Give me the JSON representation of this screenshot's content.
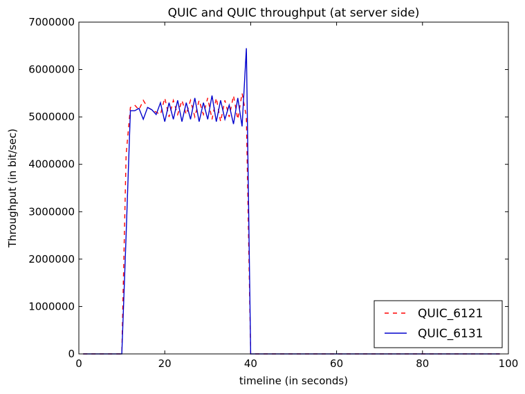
{
  "chart_data": {
    "type": "line",
    "title": "QUIC and QUIC throughput (at server side)",
    "xlabel": "timeline (in seconds)",
    "ylabel": "Throughput (in bit/sec)",
    "xlim": [
      0,
      100
    ],
    "ylim": [
      0,
      7000000
    ],
    "xticks": [
      0,
      20,
      40,
      60,
      80,
      100
    ],
    "yticks": [
      0,
      1000000,
      2000000,
      3000000,
      4000000,
      5000000,
      6000000,
      7000000
    ],
    "grid": false,
    "legend_position": "lower-right",
    "series": [
      {
        "name": "QUIC_6121",
        "color": "#ff0000",
        "style": "dashed",
        "x": [
          1,
          2,
          3,
          4,
          5,
          6,
          7,
          8,
          9,
          10,
          11,
          12,
          13,
          14,
          15,
          16,
          17,
          18,
          19,
          20,
          21,
          22,
          23,
          24,
          25,
          26,
          27,
          28,
          29,
          30,
          31,
          32,
          33,
          34,
          35,
          36,
          37,
          38,
          39,
          40,
          41,
          42,
          43,
          44,
          45,
          46,
          47,
          48,
          49,
          50,
          51,
          52,
          53,
          54,
          55,
          56,
          57,
          58,
          59,
          60,
          61,
          62,
          63,
          64,
          65,
          66,
          67,
          68,
          69,
          70,
          71,
          72,
          73,
          74,
          75,
          76,
          77,
          78,
          79,
          80,
          81,
          82,
          83,
          84,
          85,
          86,
          87,
          88,
          89,
          90,
          91,
          92,
          93,
          94,
          95,
          96,
          97,
          98
        ],
        "y": [
          0,
          0,
          0,
          0,
          0,
          0,
          0,
          0,
          0,
          0,
          4200000,
          5200000,
          5250000,
          5150000,
          5350000,
          5200000,
          5150000,
          5100000,
          5050000,
          5400000,
          5000000,
          5350000,
          5050000,
          5350000,
          5050000,
          5350000,
          5000000,
          5350000,
          5050000,
          5400000,
          4950000,
          5400000,
          4900000,
          5350000,
          5000000,
          5450000,
          4950000,
          5500000,
          5000000,
          0,
          0,
          0,
          0,
          0,
          0,
          0,
          0,
          0,
          0,
          0,
          0,
          0,
          0,
          0,
          0,
          0,
          0,
          0,
          0,
          0,
          0,
          0,
          0,
          0,
          0,
          0,
          0,
          0,
          0,
          0,
          0,
          0,
          0,
          0,
          0,
          0,
          0,
          0,
          0,
          0,
          0,
          0,
          0,
          0,
          0,
          0,
          0,
          0,
          0,
          0,
          0,
          0,
          0,
          0,
          0,
          0,
          0,
          0
        ]
      },
      {
        "name": "QUIC_6131",
        "color": "#0000cc",
        "style": "solid",
        "x": [
          1,
          2,
          3,
          4,
          5,
          6,
          7,
          8,
          9,
          10,
          11,
          12,
          13,
          14,
          15,
          16,
          17,
          18,
          19,
          20,
          21,
          22,
          23,
          24,
          25,
          26,
          27,
          28,
          29,
          30,
          31,
          32,
          33,
          34,
          35,
          36,
          37,
          38,
          39,
          40,
          41,
          42,
          43,
          44,
          45,
          46,
          47,
          48,
          49,
          50,
          51,
          52,
          53,
          54,
          55,
          56,
          57,
          58,
          59,
          60,
          61,
          62,
          63,
          64,
          65,
          66,
          67,
          68,
          69,
          70,
          71,
          72,
          73,
          74,
          75,
          76,
          77,
          78,
          79,
          80,
          81,
          82,
          83,
          84,
          85,
          86,
          87,
          88,
          89,
          90,
          91,
          92,
          93,
          94,
          95,
          96,
          97,
          98
        ],
        "y": [
          0,
          0,
          0,
          0,
          0,
          0,
          0,
          0,
          0,
          0,
          2500000,
          5130000,
          5130000,
          5180000,
          4950000,
          5200000,
          5150000,
          5050000,
          5300000,
          4900000,
          5300000,
          4950000,
          5350000,
          4900000,
          5300000,
          4950000,
          5400000,
          4900000,
          5300000,
          4950000,
          5450000,
          4900000,
          5350000,
          4950000,
          5250000,
          4850000,
          5400000,
          4800000,
          6450000,
          0,
          0,
          0,
          0,
          0,
          0,
          0,
          0,
          0,
          0,
          0,
          0,
          0,
          0,
          0,
          0,
          0,
          0,
          0,
          0,
          0,
          0,
          0,
          0,
          0,
          0,
          0,
          0,
          0,
          0,
          0,
          0,
          0,
          0,
          0,
          0,
          0,
          0,
          0,
          0,
          0,
          0,
          0,
          0,
          0,
          0,
          0,
          0,
          0,
          0,
          0,
          0,
          0,
          0,
          0,
          0,
          0,
          0,
          0
        ]
      }
    ]
  }
}
